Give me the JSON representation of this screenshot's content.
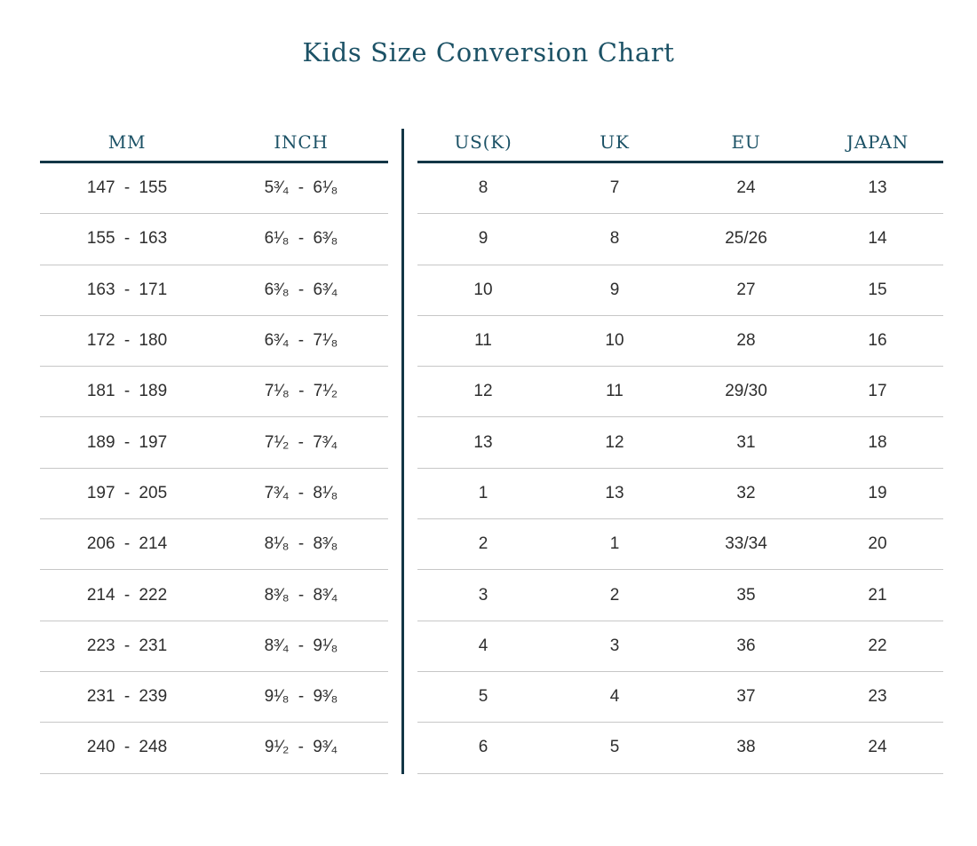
{
  "colors": {
    "accent_teal_text": "#1c5266",
    "rule_dark_teal": "#133646",
    "row_separator_gray": "#c7c7c7",
    "cell_text": "#2e2e2e",
    "background": "#ffffff"
  },
  "chart_data": {
    "type": "table",
    "title": "Kids Size Conversion Chart",
    "left_table": {
      "headers": [
        "MM",
        "INCH"
      ],
      "rows": [
        [
          "147 - 155",
          "5³⁄₄ - 6¹⁄₈"
        ],
        [
          "155 - 163",
          "6¹⁄₈ - 6³⁄₈"
        ],
        [
          "163 - 171",
          "6³⁄₈ - 6³⁄₄"
        ],
        [
          "172 - 180",
          "6³⁄₄ - 7¹⁄₈"
        ],
        [
          "181 - 189",
          "7¹⁄₈ - 7¹⁄₂"
        ],
        [
          "189 - 197",
          "7¹⁄₂ - 7³⁄₄"
        ],
        [
          "197 - 205",
          "7³⁄₄ - 8¹⁄₈"
        ],
        [
          "206 - 214",
          "8¹⁄₈ - 8³⁄₈"
        ],
        [
          "214 - 222",
          "8³⁄₈ - 8³⁄₄"
        ],
        [
          "223 - 231",
          "8³⁄₄ - 9¹⁄₈"
        ],
        [
          "231 - 239",
          "9¹⁄₈ - 9³⁄₈"
        ],
        [
          "240 - 248",
          "9¹⁄₂ - 9³⁄₄"
        ]
      ]
    },
    "right_table": {
      "headers": [
        "US(K)",
        "UK",
        "EU",
        "JAPAN"
      ],
      "rows": [
        [
          "8",
          "7",
          "24",
          "13"
        ],
        [
          "9",
          "8",
          "25/26",
          "14"
        ],
        [
          "10",
          "9",
          "27",
          "15"
        ],
        [
          "11",
          "10",
          "28",
          "16"
        ],
        [
          "12",
          "11",
          "29/30",
          "17"
        ],
        [
          "13",
          "12",
          "31",
          "18"
        ],
        [
          "1",
          "13",
          "32",
          "19"
        ],
        [
          "2",
          "1",
          "33/34",
          "20"
        ],
        [
          "3",
          "2",
          "35",
          "21"
        ],
        [
          "4",
          "3",
          "36",
          "22"
        ],
        [
          "5",
          "4",
          "37",
          "23"
        ],
        [
          "6",
          "5",
          "38",
          "24"
        ]
      ]
    }
  }
}
